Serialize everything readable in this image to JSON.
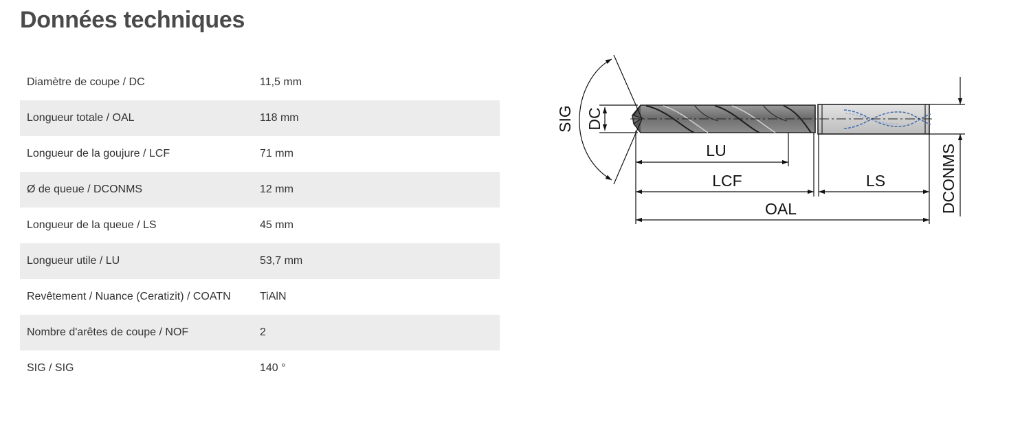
{
  "title": "Données techniques",
  "specs": [
    {
      "label": "Diamètre de coupe / DC",
      "value": "11,5 mm"
    },
    {
      "label": "Longueur totale / OAL",
      "value": "118 mm"
    },
    {
      "label": "Longueur de la goujure / LCF",
      "value": "71 mm"
    },
    {
      "label": "Ø de queue / DCONMS",
      "value": "12 mm"
    },
    {
      "label": "Longueur de la queue / LS",
      "value": "45 mm"
    },
    {
      "label": "Longueur utile / LU",
      "value": "53,7 mm"
    },
    {
      "label": "Revêtement / Nuance (Ceratizit) / COATN",
      "value": "TiAlN"
    },
    {
      "label": "Nombre d'arêtes de coupe / NOF",
      "value": "2"
    },
    {
      "label": "SIG / SIG",
      "value": "140 °"
    }
  ],
  "diagram": {
    "labels": {
      "sig": "SIG",
      "dc": "DC",
      "lu": "LU",
      "lcf": "LCF",
      "ls": "LS",
      "oal": "OAL",
      "dconms": "DCONMS"
    }
  },
  "colors": {
    "row_alt": "#ececec",
    "title": "#4a4a4a",
    "drill_body": "#7d7d7d",
    "shank": "#d4d4d4",
    "coolant": "#4a6fa8"
  }
}
